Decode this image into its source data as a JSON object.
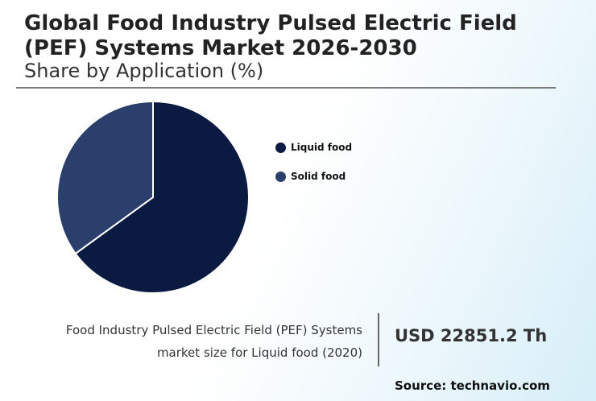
{
  "header": {
    "title": "Global Food Industry Pulsed Electric Field (PEF) Systems Market 2026-2030",
    "subtitle": "Share by Application (%)"
  },
  "chart_data": {
    "type": "pie",
    "title": "Global Food Industry Pulsed Electric Field (PEF) Systems Market 2026-2030",
    "subtitle": "Share by Application (%)",
    "legend_position": "right",
    "categories": [
      "Liquid food",
      "Solid food"
    ],
    "values": [
      65,
      35
    ],
    "colors": [
      "#0a1a40",
      "#2b3f6d"
    ]
  },
  "stat": {
    "description": "Food Industry Pulsed Electric Field (PEF) Systems market size for Liquid food (2020)",
    "value": "USD 22851.2 Th"
  },
  "footer": {
    "source": "Source: technavio.com"
  }
}
